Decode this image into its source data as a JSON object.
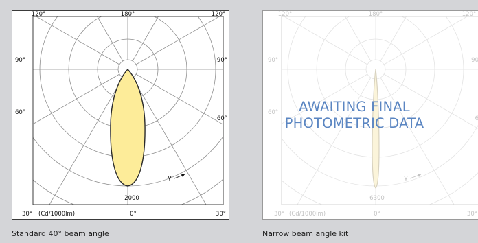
{
  "panels": [
    {
      "angle_labels": {
        "top_left": "120°",
        "top_center": "180°",
        "top_right": "120°",
        "mid_left": "90°",
        "mid_right": "90°",
        "low_left": "60°",
        "low_right": "60°",
        "bottom_left": "30°",
        "bottom_center": "0°",
        "bottom_right": "30°"
      },
      "unit_label": "(Cd/1000lm)",
      "scale_value": "2000",
      "gamma_label": "γ",
      "caption": "Standard 40° beam angle",
      "colors": {
        "fill": "#fdec99",
        "stroke": "#2a2a2a",
        "grid": "#8f8f8f"
      }
    },
    {
      "angle_labels": {
        "top_left": "120°",
        "top_center": "180°",
        "top_right": "120°",
        "mid_left": "90°",
        "mid_right": "90",
        "low_left": "60°",
        "low_right": "6",
        "bottom_left": "30°",
        "bottom_center": "0°",
        "bottom_right": "30°"
      },
      "unit_label": "(Cd/1000lm)",
      "scale_value": "6300",
      "gamma_label": "γ",
      "caption": "Narrow beam angle kit",
      "overlay": [
        "AWAITING FINAL",
        "PHOTOMETRIC DATA"
      ],
      "colors": {
        "fill": "#fbf4da",
        "stroke": "#d8d2bf",
        "grid": "#e3e3e3",
        "text": "#c4c4c4"
      }
    }
  ]
}
